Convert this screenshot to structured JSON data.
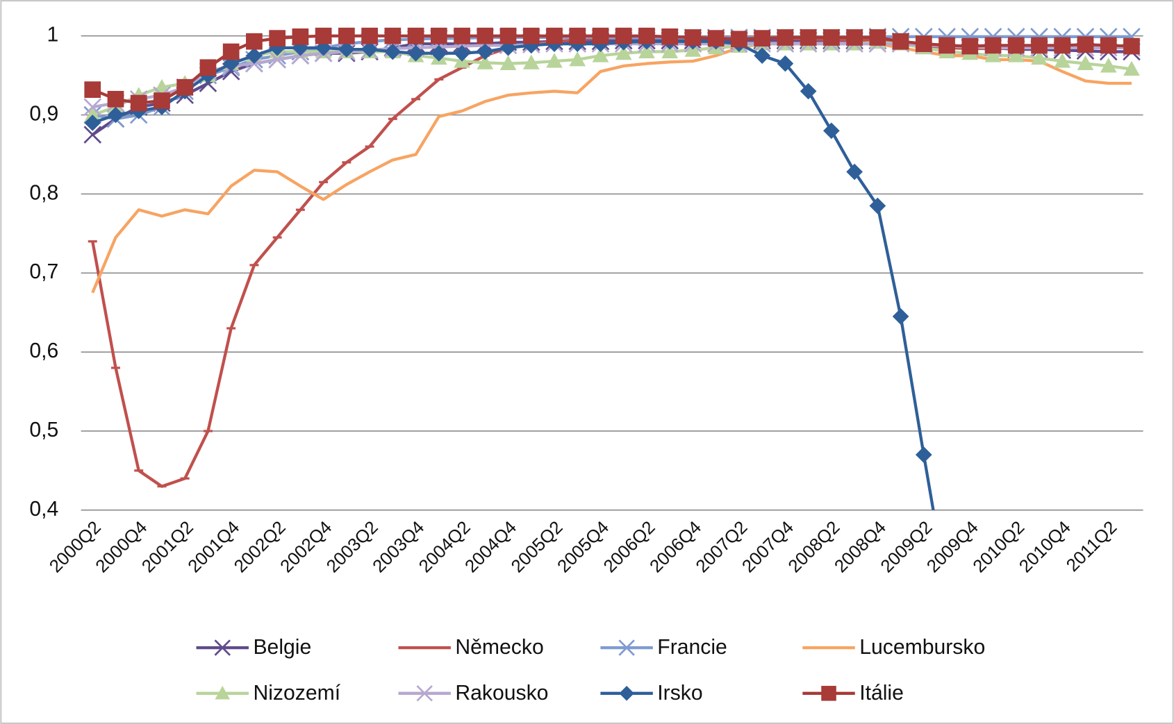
{
  "chart_data": {
    "type": "line",
    "categories": [
      "2000Q2",
      null,
      "2000Q4",
      null,
      "2001Q2",
      null,
      "2001Q4",
      null,
      "2002Q2",
      null,
      "2002Q4",
      null,
      "2003Q2",
      null,
      "2003Q4",
      null,
      "2004Q2",
      null,
      "2004Q4",
      null,
      "2005Q2",
      null,
      "2005Q4",
      null,
      "2006Q2",
      null,
      "2006Q4",
      null,
      "2007Q2",
      null,
      "2007Q4",
      null,
      "2008Q2",
      null,
      "2008Q4",
      null,
      "2009Q2",
      null,
      "2009Q4",
      null,
      "2010Q2",
      null,
      "2010Q4",
      null,
      "2011Q2",
      null
    ],
    "ylim": [
      0.4,
      1
    ],
    "yticks": [
      {
        "value": 0.4,
        "label": "0,4"
      },
      {
        "value": 0.5,
        "label": "0,5"
      },
      {
        "value": 0.6,
        "label": "0,6"
      },
      {
        "value": 0.7,
        "label": "0,7"
      },
      {
        "value": 0.8,
        "label": "0,8"
      },
      {
        "value": 0.9,
        "label": "0,9"
      },
      1
    ],
    "grid": true,
    "legend": "bottom",
    "series": [
      {
        "name": "Belgie",
        "color": "#5f4b8b",
        "marker": "x",
        "values": [
          0.875,
          0.895,
          0.91,
          0.915,
          0.925,
          0.94,
          0.955,
          0.965,
          0.97,
          0.975,
          0.978,
          0.978,
          0.98,
          0.985,
          0.99,
          0.99,
          0.99,
          0.99,
          0.992,
          0.992,
          0.993,
          0.993,
          0.993,
          0.994,
          0.994,
          0.994,
          0.994,
          0.994,
          0.994,
          0.994,
          0.994,
          0.994,
          0.994,
          0.994,
          0.994,
          0.993,
          0.99,
          0.988,
          0.985,
          0.985,
          0.983,
          0.983,
          0.982,
          0.981,
          0.98,
          0.98
        ]
      },
      {
        "name": "Německo",
        "color": "#c0504d",
        "marker": "dash",
        "values": [
          0.74,
          0.58,
          0.45,
          0.43,
          0.44,
          0.5,
          0.63,
          0.71,
          0.745,
          0.78,
          0.815,
          0.84,
          0.86,
          0.895,
          0.92,
          0.945,
          0.96,
          0.975,
          0.985,
          0.99,
          0.993,
          0.995,
          0.997,
          0.998,
          0.998,
          0.998,
          0.998,
          0.998,
          0.998,
          0.998,
          0.997,
          0.996,
          0.995,
          0.995,
          0.994,
          0.99,
          0.988,
          0.985,
          0.984,
          0.984,
          0.985,
          0.985,
          0.985,
          0.985,
          0.985,
          0.985
        ]
      },
      {
        "name": "Francie",
        "color": "#7f9bd0",
        "marker": "x",
        "values": [
          0.9,
          0.895,
          0.9,
          0.91,
          0.93,
          0.95,
          0.96,
          0.97,
          0.975,
          0.98,
          0.985,
          0.99,
          0.993,
          0.995,
          0.996,
          0.997,
          0.997,
          0.998,
          0.998,
          0.998,
          0.998,
          0.998,
          0.998,
          0.998,
          0.998,
          0.998,
          0.998,
          0.998,
          0.998,
          0.998,
          0.998,
          0.998,
          0.998,
          0.998,
          0.999,
          0.999,
          0.999,
          0.999,
          0.999,
          0.999,
          0.999,
          0.999,
          0.999,
          0.999,
          0.999,
          0.999
        ]
      },
      {
        "name": "Lucembursko",
        "color": "#f7a462",
        "marker": "none",
        "values": [
          0.675,
          0.745,
          0.78,
          0.772,
          0.78,
          0.775,
          0.81,
          0.83,
          0.828,
          0.81,
          0.793,
          0.812,
          0.828,
          0.843,
          0.85,
          0.898,
          0.905,
          0.917,
          0.925,
          0.928,
          0.93,
          0.928,
          0.955,
          0.962,
          0.965,
          0.967,
          0.968,
          0.975,
          0.985,
          0.99,
          0.99,
          0.99,
          0.99,
          0.99,
          0.99,
          0.985,
          0.98,
          0.975,
          0.975,
          0.97,
          0.97,
          0.968,
          0.955,
          0.943,
          0.94,
          0.94
        ]
      },
      {
        "name": "Nizozemí",
        "color": "#b8d49a",
        "marker": "triangle",
        "values": [
          0.9,
          0.91,
          0.925,
          0.935,
          0.94,
          0.95,
          0.965,
          0.975,
          0.98,
          0.98,
          0.98,
          0.98,
          0.98,
          0.98,
          0.975,
          0.972,
          0.968,
          0.966,
          0.965,
          0.966,
          0.968,
          0.97,
          0.975,
          0.978,
          0.98,
          0.98,
          0.982,
          0.985,
          0.987,
          0.99,
          0.99,
          0.99,
          0.99,
          0.99,
          0.992,
          0.99,
          0.985,
          0.98,
          0.978,
          0.975,
          0.975,
          0.972,
          0.968,
          0.965,
          0.962,
          0.958
        ]
      },
      {
        "name": "Rakousko",
        "color": "#b6a8d0",
        "marker": "x",
        "values": [
          0.91,
          0.915,
          0.92,
          0.925,
          0.935,
          0.955,
          0.962,
          0.965,
          0.97,
          0.975,
          0.978,
          0.98,
          0.982,
          0.984,
          0.985,
          0.986,
          0.987,
          0.988,
          0.988,
          0.989,
          0.99,
          0.99,
          0.99,
          0.99,
          0.99,
          0.99,
          0.99,
          0.99,
          0.99,
          0.99,
          0.99,
          0.99,
          0.99,
          0.99,
          0.99,
          0.99,
          0.988,
          0.987,
          0.986,
          0.985,
          0.985,
          0.985,
          0.985,
          0.985,
          0.985,
          0.985
        ]
      },
      {
        "name": "Irsko",
        "color": "#2e5f99",
        "marker": "diamond",
        "values": [
          0.89,
          0.9,
          0.905,
          0.91,
          0.93,
          0.95,
          0.965,
          0.975,
          0.985,
          0.985,
          0.985,
          0.983,
          0.983,
          0.98,
          0.978,
          0.978,
          0.978,
          0.98,
          0.985,
          0.988,
          0.99,
          0.99,
          0.99,
          0.992,
          0.993,
          0.993,
          0.993,
          0.993,
          0.99,
          0.975,
          0.965,
          0.93,
          0.88,
          0.828,
          0.785,
          0.645,
          0.47,
          0.3,
          null,
          null,
          null,
          null,
          null,
          null,
          null,
          null
        ]
      },
      {
        "name": "Itálie",
        "color": "#a83a37",
        "marker": "square",
        "values": [
          0.932,
          0.92,
          0.915,
          0.918,
          0.935,
          0.96,
          0.98,
          0.993,
          0.997,
          0.999,
          1,
          1,
          1,
          1,
          1,
          1,
          1,
          1,
          1,
          1,
          1,
          1,
          1,
          1,
          1,
          0.999,
          0.998,
          0.997,
          0.996,
          0.997,
          0.998,
          0.998,
          0.998,
          0.998,
          0.998,
          0.993,
          0.99,
          0.988,
          0.987,
          0.988,
          0.988,
          0.988,
          0.988,
          0.989,
          0.988,
          0.987
        ]
      }
    ]
  }
}
